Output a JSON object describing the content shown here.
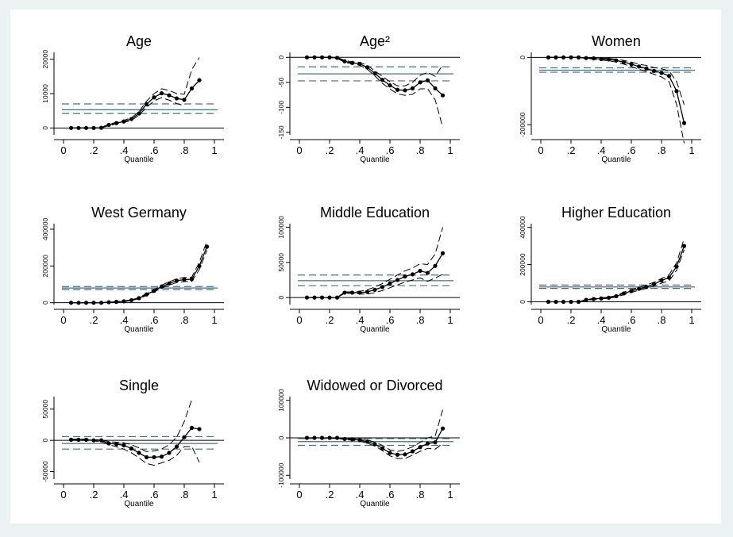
{
  "quantiles": [
    0.05,
    0.1,
    0.15,
    0.2,
    0.25,
    0.3,
    0.35,
    0.4,
    0.45,
    0.5,
    0.55,
    0.6,
    0.65,
    0.7,
    0.75,
    0.8,
    0.85,
    0.9,
    0.95
  ],
  "x_ticks": [
    "0",
    ".2",
    ".4",
    ".6",
    ".8",
    "1"
  ],
  "x_label": "Quantile",
  "colors": {
    "qr_line": "#000000",
    "ols": "#4a6e80",
    "background": "#eaf2f3"
  },
  "chart_data": [
    {
      "type": "line",
      "title": "Age",
      "xlabel": "Quantile",
      "ylim": [
        -2000,
        22000
      ],
      "yticks": [
        0,
        10000,
        20000
      ],
      "ytick_labels": [
        "0",
        "10000",
        "20000"
      ],
      "estimate": [
        0,
        0,
        0,
        0,
        50,
        900,
        1400,
        1900,
        2600,
        4200,
        6900,
        8900,
        10100,
        9500,
        8600,
        8200,
        11500,
        13900,
        null
      ],
      "lower": [
        0,
        0,
        0,
        0,
        0,
        700,
        1200,
        1600,
        2200,
        3700,
        6000,
        7900,
        8800,
        8100,
        7100,
        6500,
        null,
        null,
        null
      ],
      "upper": [
        0,
        0,
        0,
        0,
        100,
        1100,
        1600,
        2200,
        3000,
        4700,
        7800,
        10000,
        11400,
        10900,
        10000,
        9800,
        17000,
        20500,
        null
      ],
      "ols": {
        "coef": 5300,
        "lower": 4200,
        "upper": 7000
      }
    },
    {
      "type": "line",
      "title": "Age²",
      "xlabel": "Quantile",
      "ylim": [
        -155,
        10
      ],
      "yticks": [
        0,
        -50,
        -100,
        -150
      ],
      "ytick_labels": [
        "0",
        "-50",
        "-100",
        "-150"
      ],
      "estimate": [
        0,
        0,
        0,
        0,
        -1,
        -8,
        -11,
        -13,
        -20,
        -32,
        -45,
        -56,
        -65,
        -66,
        -62,
        -50,
        -46,
        -62,
        -76
      ],
      "lower": [
        0,
        0,
        0,
        0,
        -2,
        -10,
        -13,
        -16,
        -24,
        -37,
        -52,
        -63,
        -73,
        -76,
        -74,
        -63,
        -63,
        -85,
        -140
      ],
      "upper": [
        0,
        0,
        0,
        0,
        0,
        -6,
        -9,
        -10,
        -16,
        -27,
        -38,
        -49,
        -57,
        -57,
        -50,
        -36,
        -30,
        -38,
        -15
      ],
      "ols": {
        "coef": -33,
        "lower": -47,
        "upper": -19
      }
    },
    {
      "type": "line",
      "title": "Women",
      "xlabel": "Quantile",
      "ylim": [
        -230000,
        15000
      ],
      "yticks": [
        0,
        -200000
      ],
      "ytick_labels": [
        "0",
        "-200000"
      ],
      "estimate": [
        0,
        0,
        0,
        0,
        0,
        -2000,
        -3000,
        -5000,
        -6000,
        -9000,
        -14000,
        -20000,
        -27000,
        -33000,
        -40000,
        -46000,
        -55000,
        -100000,
        -195000
      ],
      "lower": [
        0,
        0,
        0,
        0,
        0,
        -3000,
        -5000,
        -8000,
        -10000,
        -14000,
        -20000,
        -27000,
        -35000,
        -42000,
        -50000,
        -58000,
        -72000,
        -140000,
        -255000
      ],
      "upper": [
        0,
        0,
        0,
        0,
        0,
        -1000,
        -2000,
        -3000,
        -3000,
        -5000,
        -9000,
        -14000,
        -20000,
        -24000,
        -30000,
        -34000,
        -40000,
        -72000,
        -140000
      ],
      "ols": {
        "coef": -38000,
        "lower": -44000,
        "upper": -31000
      }
    },
    {
      "type": "line",
      "title": "West Germany",
      "xlabel": "Quantile",
      "ylim": [
        -10000,
        430000
      ],
      "yticks": [
        0,
        200000,
        400000
      ],
      "ytick_labels": [
        "0",
        "200000",
        "400000"
      ],
      "estimate": [
        0,
        0,
        0,
        0,
        0,
        3000,
        5000,
        8000,
        14000,
        25000,
        45000,
        65000,
        88000,
        105000,
        120000,
        126000,
        128000,
        200000,
        305000
      ],
      "lower": [
        0,
        0,
        0,
        0,
        0,
        2000,
        4000,
        6000,
        12000,
        22000,
        40000,
        59000,
        80000,
        96000,
        110000,
        115000,
        116000,
        180000,
        285000
      ],
      "upper": [
        0,
        0,
        0,
        0,
        0,
        4000,
        6000,
        10000,
        16000,
        28000,
        50000,
        71000,
        96000,
        114000,
        130000,
        137000,
        140000,
        220000,
        335000
      ],
      "ols": {
        "coef": 80000,
        "lower": 72000,
        "upper": 88000
      }
    },
    {
      "type": "line",
      "title": "Middle Education",
      "xlabel": "Quantile",
      "ylim": [
        -10000,
        105000
      ],
      "yticks": [
        0,
        50000,
        100000
      ],
      "ytick_labels": [
        "0",
        "50000",
        "100000"
      ],
      "estimate": [
        0,
        0,
        0,
        0,
        0,
        7000,
        7000,
        7000,
        8000,
        11000,
        15000,
        20000,
        25000,
        30000,
        33000,
        38000,
        35000,
        45000,
        63000
      ],
      "lower": [
        0,
        0,
        0,
        0,
        0,
        6000,
        6000,
        5000,
        5000,
        7000,
        10000,
        14000,
        18000,
        22000,
        25000,
        28000,
        23000,
        28000,
        33000
      ],
      "upper": [
        0,
        0,
        0,
        0,
        0,
        8000,
        8000,
        9000,
        11000,
        15000,
        20000,
        26000,
        32000,
        38000,
        42000,
        48000,
        47000,
        62000,
        100000
      ],
      "ols": {
        "coef": 24000,
        "lower": 17000,
        "upper": 32000
      }
    },
    {
      "type": "line",
      "title": "Higher Education",
      "xlabel": "Quantile",
      "ylim": [
        -15000,
        420000
      ],
      "yticks": [
        0,
        200000,
        400000
      ],
      "ytick_labels": [
        "0",
        "200000",
        "400000"
      ],
      "estimate": [
        0,
        0,
        0,
        0,
        0,
        10000,
        15000,
        18000,
        22000,
        30000,
        45000,
        58000,
        70000,
        80000,
        95000,
        115000,
        130000,
        190000,
        300000
      ],
      "lower": [
        0,
        0,
        0,
        0,
        0,
        8000,
        12000,
        15000,
        19000,
        26000,
        38000,
        50000,
        62000,
        72000,
        85000,
        100000,
        112000,
        170000,
        280000
      ],
      "upper": [
        0,
        0,
        0,
        0,
        0,
        12000,
        18000,
        21000,
        25000,
        34000,
        52000,
        65000,
        78000,
        90000,
        105000,
        125000,
        145000,
        210000,
        340000
      ],
      "ols": {
        "coef": 80000,
        "lower": 72000,
        "upper": 90000
      }
    },
    {
      "type": "line",
      "title": "Single",
      "xlabel": "Quantile",
      "ylim": [
        -62000,
        70000
      ],
      "yticks": [
        50000,
        0,
        -50000
      ],
      "ytick_labels": [
        "50000",
        "0",
        "-50000"
      ],
      "estimate": [
        1000,
        1000,
        1000,
        0,
        0,
        -5000,
        -6000,
        -8000,
        -13000,
        -20000,
        -27000,
        -27000,
        -26000,
        -20000,
        -10000,
        5000,
        20000,
        18000,
        null
      ],
      "lower": [
        0,
        0,
        0,
        -1000,
        -2000,
        -7000,
        -10000,
        -14000,
        -20000,
        -28000,
        -37000,
        -40000,
        -36000,
        -32000,
        -24000,
        -10000,
        -10000,
        -35000,
        null
      ],
      "upper": [
        2000,
        2000,
        2000,
        1000,
        1000,
        -2000,
        -3000,
        -4000,
        -7000,
        -12000,
        -18000,
        -17000,
        -14000,
        -7000,
        5000,
        30000,
        65000,
        null,
        null
      ],
      "ols": {
        "coef": -5000,
        "lower": -14000,
        "upper": 6000
      }
    },
    {
      "type": "line",
      "title": "Widowed or Divorced",
      "xlabel": "Quantile",
      "ylim": [
        -110000,
        110000
      ],
      "yticks": [
        100000,
        0,
        -100000
      ],
      "ytick_labels": [
        "100000",
        "0",
        "-100000"
      ],
      "estimate": [
        0,
        0,
        0,
        0,
        0,
        -3000,
        -4000,
        -6000,
        -10000,
        -17000,
        -28000,
        -40000,
        -45000,
        -44000,
        -36000,
        -25000,
        -15000,
        -12000,
        25000
      ],
      "lower": [
        0,
        0,
        0,
        -1000,
        -1000,
        -5000,
        -6000,
        -9000,
        -14000,
        -22000,
        -34000,
        -48000,
        -55000,
        -55000,
        -46000,
        -36000,
        -28000,
        -30000,
        -15000
      ],
      "upper": [
        0,
        0,
        0,
        0,
        0,
        -1000,
        -2000,
        -3000,
        -5000,
        -12000,
        -20000,
        -32000,
        -36000,
        -32000,
        -24000,
        -12000,
        0,
        5000,
        75000
      ],
      "ols": {
        "coef": -10000,
        "lower": -20000,
        "upper": -2000
      }
    }
  ]
}
